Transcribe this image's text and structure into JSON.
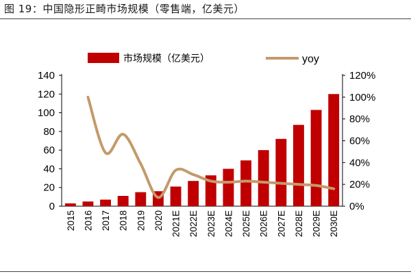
{
  "figure": {
    "title": "图 19：中国隐形正畸市场规模（零售端，亿美元）"
  },
  "chart_data": {
    "type": "bar",
    "categories": [
      "2015",
      "2016",
      "2017",
      "2018",
      "2019",
      "2020",
      "2021E",
      "2022E",
      "2023E",
      "2024E",
      "2025E",
      "2026E",
      "2027E",
      "2028E",
      "2029E",
      "2030E"
    ],
    "series": [
      {
        "name": "市场规模（亿美元）",
        "type": "bar",
        "axis": "left",
        "color": "#c00000",
        "values": [
          3,
          5,
          7,
          11,
          15,
          16,
          21,
          27,
          33,
          40,
          49,
          60,
          72,
          87,
          103,
          120
        ]
      },
      {
        "name": "yoy",
        "type": "line",
        "axis": "right",
        "color": "#c49a6c",
        "values": [
          null,
          100,
          49,
          66,
          39,
          8,
          33,
          29,
          23,
          22,
          23,
          22,
          21,
          20,
          19,
          16
        ]
      }
    ],
    "y_left": {
      "min": 0,
      "max": 140,
      "ticks": [
        0,
        20,
        40,
        60,
        80,
        100,
        120,
        140
      ]
    },
    "y_right": {
      "min": 0,
      "max": 120,
      "ticks": [
        "0%",
        "20%",
        "40%",
        "60%",
        "80%",
        "100%",
        "120%"
      ]
    },
    "legend_position": "top",
    "grid": false
  }
}
